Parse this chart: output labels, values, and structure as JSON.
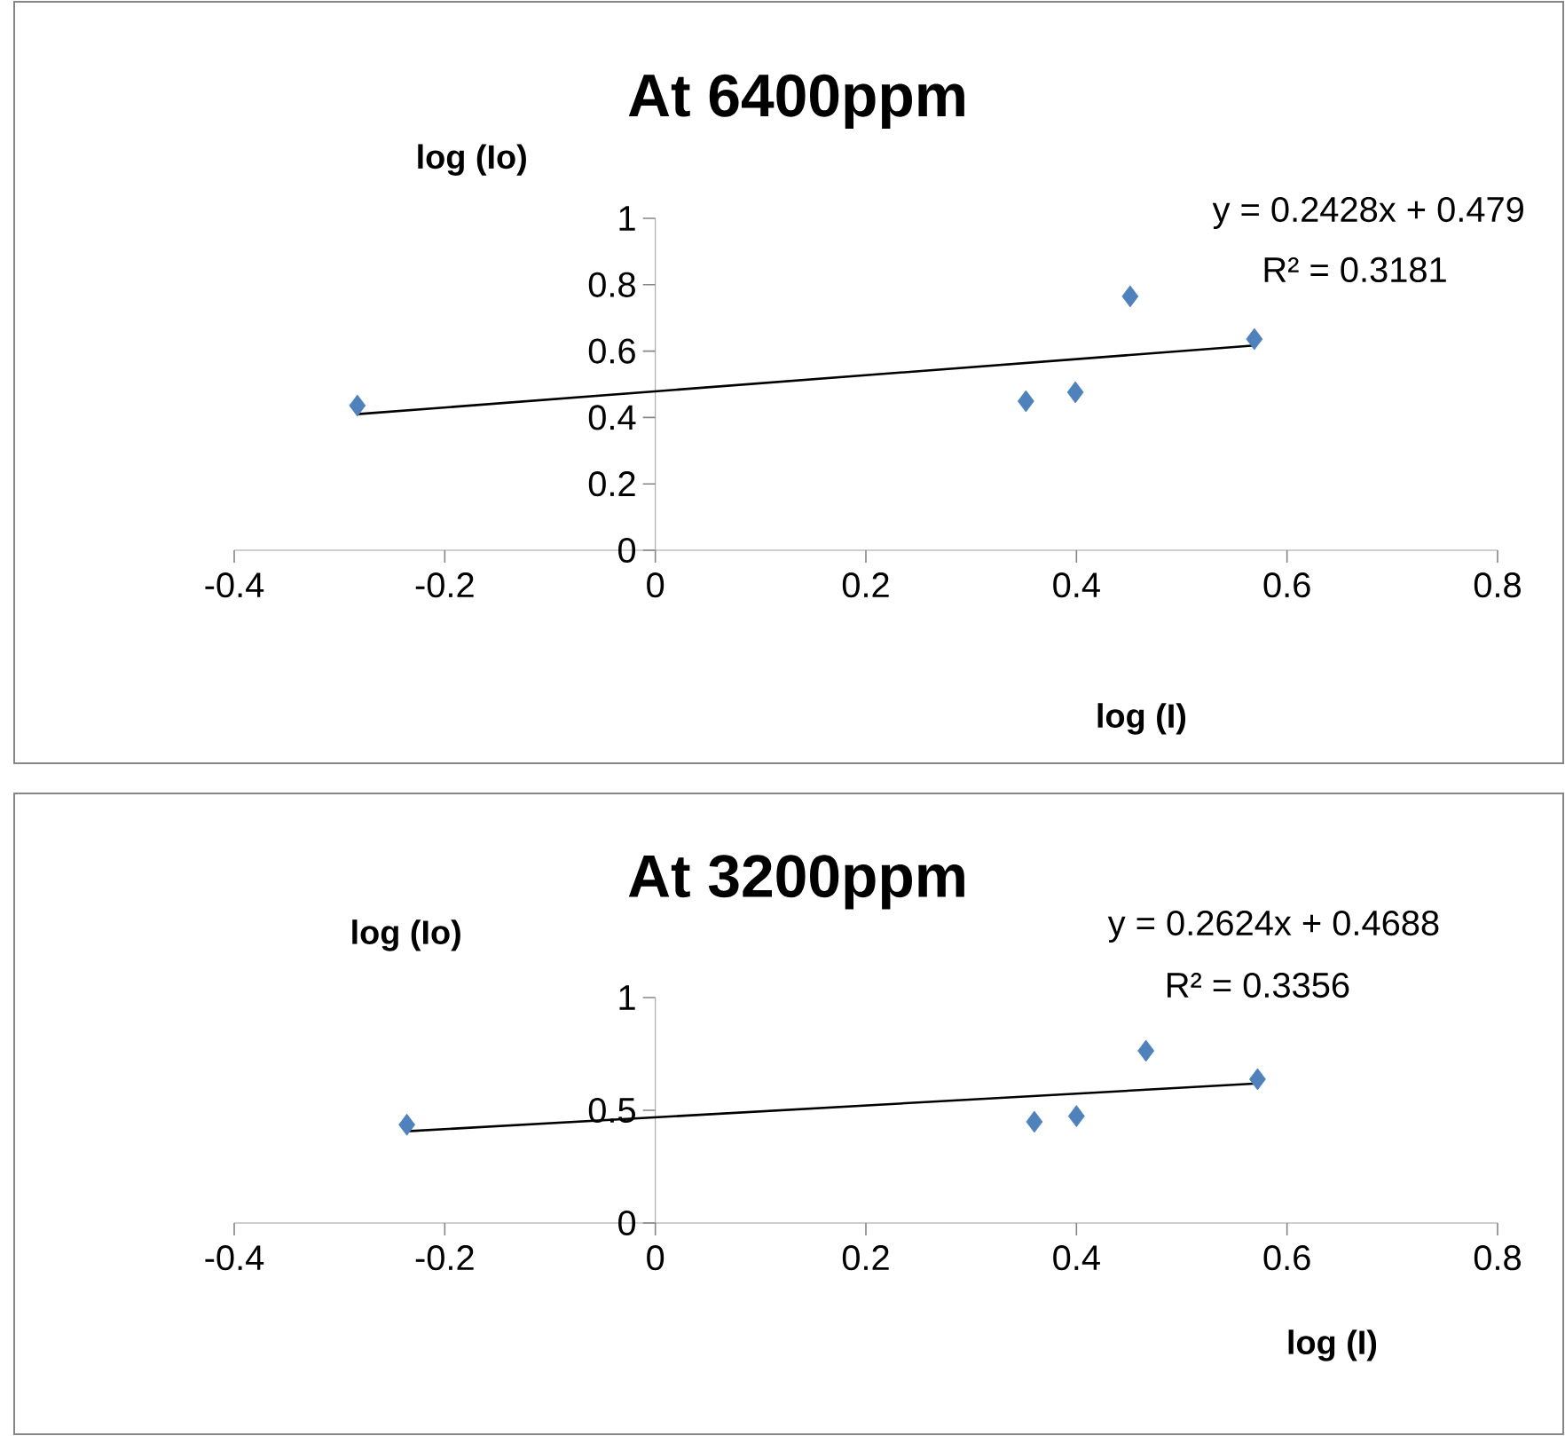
{
  "chart_data": [
    {
      "type": "scatter",
      "title": "At 6400ppm",
      "xlabel": "log (I)",
      "ylabel": "log (Io)",
      "xlim": [
        -0.4,
        0.8
      ],
      "ylim": [
        0,
        1
      ],
      "xticks": [
        -0.4,
        -0.2,
        0,
        0.2,
        0.4,
        0.6,
        0.8
      ],
      "yticks": [
        0,
        0.2,
        0.4,
        0.6,
        0.8,
        1
      ],
      "marker": "diamond",
      "grid": false,
      "annotations": [
        "y = 0.2428x + 0.479",
        "R² = 0.3181"
      ],
      "series": [
        {
          "color": "#4f81bd",
          "x": [
            -0.283,
            0.352,
            0.399,
            0.451,
            0.569
          ],
          "values": [
            0.436,
            0.449,
            0.476,
            0.765,
            0.636
          ]
        },
        {
          "type": "line",
          "color": "#000000",
          "marker": "none",
          "x": [
            -0.283,
            0.569
          ],
          "values": [
            0.41,
            0.617
          ]
        }
      ]
    },
    {
      "type": "scatter",
      "title": "At 3200ppm",
      "xlabel": "log (I)",
      "ylabel": "log (Io)",
      "xlim": [
        -0.4,
        0.8
      ],
      "ylim": [
        0,
        1
      ],
      "xticks": [
        -0.4,
        -0.2,
        0,
        0.2,
        0.4,
        0.6,
        0.8
      ],
      "yticks": [
        0,
        0.5,
        1
      ],
      "marker": "diamond",
      "grid": false,
      "annotations": [
        "y = 0.2624x + 0.4688",
        "R² = 0.3356"
      ],
      "series": [
        {
          "color": "#4f81bd",
          "x": [
            -0.236,
            0.36,
            0.4,
            0.466,
            0.572
          ],
          "values": [
            0.436,
            0.449,
            0.474,
            0.764,
            0.638
          ]
        },
        {
          "type": "line",
          "color": "#000000",
          "marker": "none",
          "x": [
            -0.236,
            0.572
          ],
          "values": [
            0.407,
            0.619
          ]
        }
      ]
    }
  ]
}
